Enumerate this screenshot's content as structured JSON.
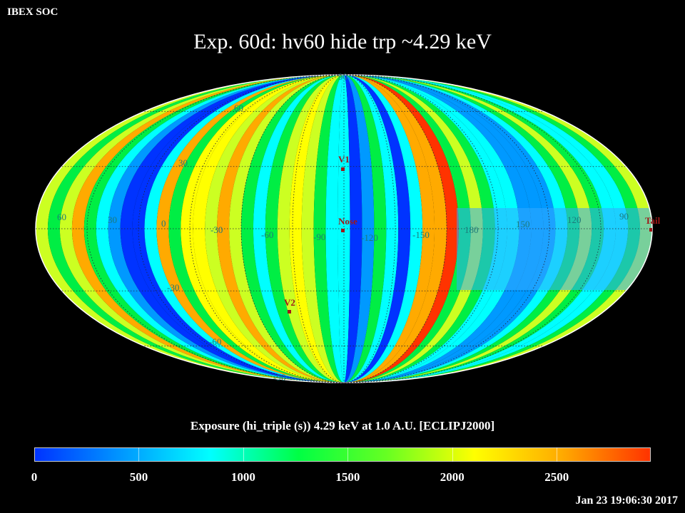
{
  "header": {
    "soc_label": "IBEX SOC",
    "title": "Exp.   60d: hv60 hide trp ~4.29 keV"
  },
  "map": {
    "projection": "mollweide",
    "markers": [
      {
        "name": "V1",
        "label": "V1"
      },
      {
        "name": "Nose",
        "label": "Nose"
      },
      {
        "name": "V2",
        "label": "V2"
      },
      {
        "name": "Tail",
        "label": "Tail"
      }
    ],
    "longitude_labels": [
      "60",
      "30",
      "0",
      "-30",
      "-60",
      "-90",
      "-120",
      "-150",
      "180",
      "150",
      "120",
      "90"
    ],
    "latitude_labels": [
      "90",
      "60",
      "30",
      "-30",
      "-60",
      "-90"
    ]
  },
  "colorbar": {
    "title": "Exposure (hi_triple (s))  4.29 keV at 1.0 A.U. [ECLIPJ2000]",
    "tick_labels": [
      "0",
      "500",
      "1000",
      "1500",
      "2000",
      "2500"
    ],
    "range": [
      0,
      2950
    ],
    "colors": [
      "#0033ff",
      "#0099ff",
      "#00ffff",
      "#00ff44",
      "#66ff22",
      "#ffff00",
      "#ffaa00",
      "#ff3300"
    ]
  },
  "footer": {
    "timestamp": "Jan 23 19:06:30 2017"
  }
}
